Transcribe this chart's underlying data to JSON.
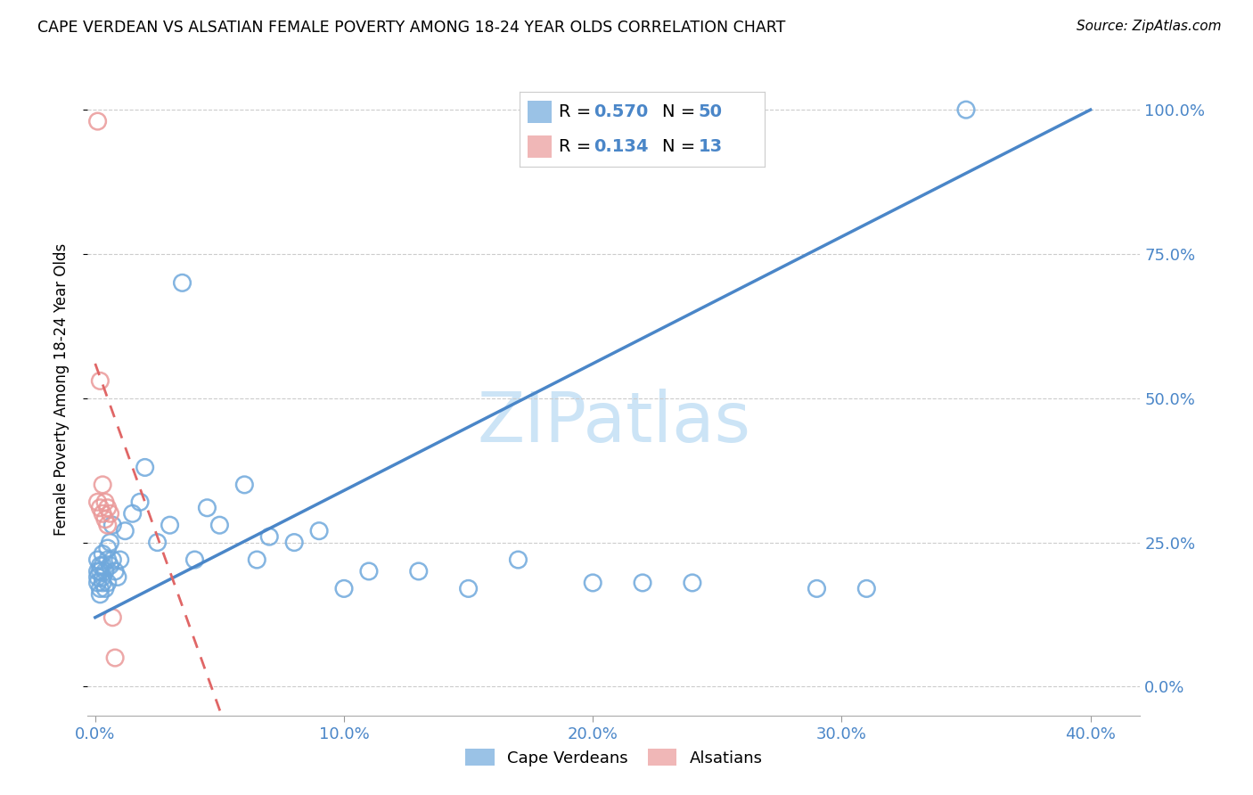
{
  "title": "CAPE VERDEAN VS ALSATIAN FEMALE POVERTY AMONG 18-24 YEAR OLDS CORRELATION CHART",
  "source": "Source: ZipAtlas.com",
  "ylabel": "Female Poverty Among 18-24 Year Olds",
  "xlabel_tick_vals": [
    0.0,
    0.1,
    0.2,
    0.3,
    0.4
  ],
  "xlabel_ticks": [
    "0.0%",
    "10.0%",
    "20.0%",
    "30.0%",
    "40.0%"
  ],
  "ylabel_tick_vals": [
    0.0,
    0.25,
    0.5,
    0.75,
    1.0
  ],
  "ylabel_ticks": [
    "0.0%",
    "25.0%",
    "50.0%",
    "75.0%",
    "100.0%"
  ],
  "xmin": -0.003,
  "xmax": 0.42,
  "ymin": -0.05,
  "ymax": 1.08,
  "blue_color": "#6fa8dc",
  "pink_color": "#ea9999",
  "line_blue": "#4a86c8",
  "line_pink": "#e06666",
  "cv_x": [
    0.001,
    0.001,
    0.001,
    0.001,
    0.002,
    0.002,
    0.002,
    0.002,
    0.003,
    0.003,
    0.003,
    0.003,
    0.004,
    0.004,
    0.005,
    0.005,
    0.005,
    0.006,
    0.006,
    0.007,
    0.007,
    0.008,
    0.009,
    0.01,
    0.012,
    0.015,
    0.018,
    0.02,
    0.025,
    0.03,
    0.035,
    0.04,
    0.045,
    0.05,
    0.06,
    0.065,
    0.07,
    0.08,
    0.09,
    0.1,
    0.11,
    0.13,
    0.15,
    0.17,
    0.2,
    0.22,
    0.24,
    0.29,
    0.31,
    0.35
  ],
  "cv_y": [
    0.22,
    0.2,
    0.19,
    0.18,
    0.21,
    0.2,
    0.17,
    0.16,
    0.23,
    0.21,
    0.19,
    0.18,
    0.2,
    0.17,
    0.24,
    0.22,
    0.18,
    0.25,
    0.21,
    0.28,
    0.22,
    0.2,
    0.19,
    0.22,
    0.27,
    0.3,
    0.32,
    0.38,
    0.25,
    0.28,
    0.7,
    0.22,
    0.31,
    0.28,
    0.35,
    0.22,
    0.26,
    0.25,
    0.27,
    0.17,
    0.2,
    0.2,
    0.17,
    0.22,
    0.18,
    0.18,
    0.18,
    0.17,
    0.17,
    1.0
  ],
  "al_x": [
    0.001,
    0.001,
    0.002,
    0.002,
    0.003,
    0.003,
    0.004,
    0.004,
    0.005,
    0.005,
    0.006,
    0.007,
    0.008
  ],
  "al_y": [
    0.98,
    0.32,
    0.53,
    0.31,
    0.35,
    0.3,
    0.32,
    0.29,
    0.31,
    0.28,
    0.3,
    0.12,
    0.05
  ],
  "cv_line_x0": 0.0,
  "cv_line_y0": 0.12,
  "cv_line_x1": 0.4,
  "cv_line_y1": 1.0,
  "al_line_x0": 0.0,
  "al_line_y0": 0.56,
  "al_line_x1": 0.015,
  "al_line_y1": 0.38,
  "cv_R": "0.570",
  "cv_N": "50",
  "al_R": "0.134",
  "al_N": "13"
}
